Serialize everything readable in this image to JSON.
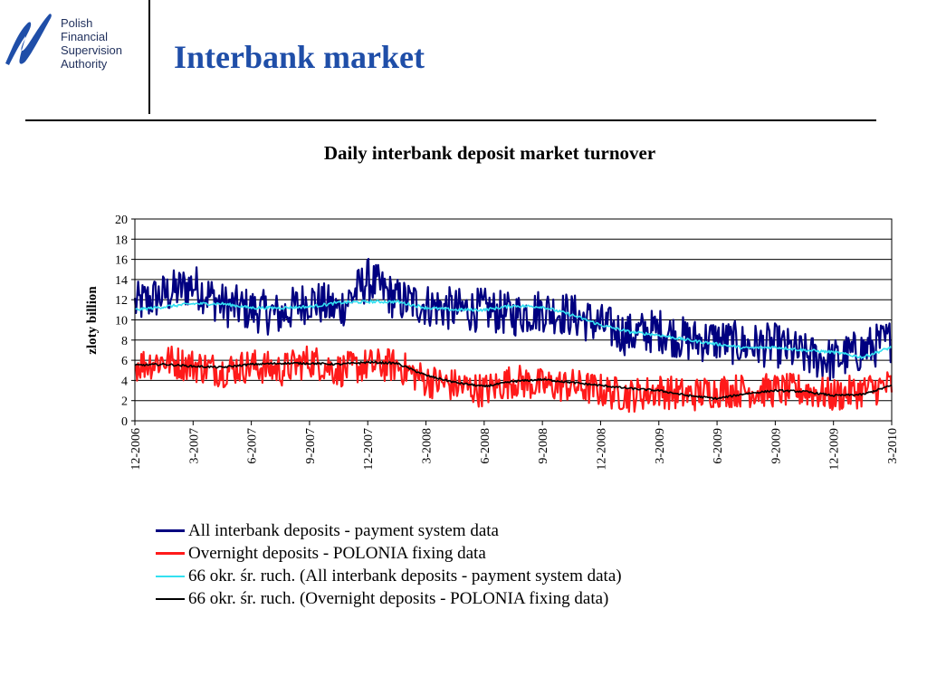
{
  "header": {
    "logo_lines": [
      "Polish",
      "Financial",
      "Supervision",
      "Authority"
    ],
    "title": "Interbank market"
  },
  "colors": {
    "all_deposits": "#000080",
    "overnight": "#ff1a1a",
    "ma_all": "#33e0f0",
    "ma_overnight": "#000000",
    "logo": "#1f4ea8"
  },
  "chart_data": {
    "type": "line",
    "title": "Daily interbank deposit market turnover",
    "ylabel": "zloty billion",
    "xlabel": "",
    "ylim": [
      0,
      20
    ],
    "yticks": [
      0,
      2,
      4,
      6,
      8,
      10,
      12,
      14,
      16,
      18,
      20
    ],
    "xlim": [
      "2006-12",
      "2010-03"
    ],
    "xticks": [
      "12-2006",
      "3-2007",
      "6-2007",
      "9-2007",
      "12-2007",
      "3-2008",
      "6-2008",
      "9-2008",
      "12-2008",
      "3-2009",
      "6-2009",
      "9-2009",
      "12-2009",
      "3-2010"
    ],
    "grid": "horizontal",
    "legend_position": "bottom",
    "x_quarter_index": [
      0,
      0.5,
      1,
      1.5,
      2,
      2.5,
      3,
      3.5,
      4,
      4.5,
      5,
      5.5,
      6,
      6.5,
      7,
      7.5,
      8,
      8.5,
      9,
      9.5,
      10,
      10.5,
      11,
      11.5,
      12,
      12.5,
      13
    ],
    "series": [
      {
        "name": "All interbank deposits - payment system data",
        "color_key": "all_deposits",
        "values": [
          11.5,
          12.5,
          13.5,
          11.5,
          11.0,
          10.5,
          12.0,
          11.0,
          14.0,
          12.0,
          11.5,
          11.0,
          11.0,
          10.5,
          11.0,
          10.5,
          9.5,
          8.5,
          9.0,
          8.0,
          8.0,
          7.5,
          7.5,
          6.5,
          6.0,
          7.0,
          8.0
        ]
      },
      {
        "name": "Overnight deposits - POLONIA fixing data",
        "color_key": "overnight",
        "values": [
          5.5,
          6.0,
          5.5,
          5.0,
          5.5,
          5.0,
          6.0,
          5.0,
          5.5,
          5.5,
          4.0,
          3.5,
          3.0,
          4.0,
          3.5,
          3.5,
          3.0,
          2.5,
          3.0,
          2.5,
          3.0,
          3.0,
          3.0,
          3.0,
          2.5,
          3.0,
          3.5
        ]
      },
      {
        "name": "66 okr. śr. ruch. (All interbank deposits - payment system data)",
        "color_key": "ma_all",
        "values": [
          11.0,
          11.3,
          11.6,
          11.6,
          11.2,
          11.2,
          11.3,
          11.7,
          11.8,
          11.8,
          11.2,
          11.0,
          11.0,
          11.4,
          11.3,
          10.5,
          9.5,
          8.8,
          8.5,
          8.0,
          7.6,
          7.2,
          7.3,
          7.0,
          6.8,
          6.3,
          7.3
        ]
      },
      {
        "name": "66 okr. śr. ruch. (Overnight deposits - POLONIA fixing data)",
        "color_key": "ma_overnight",
        "values": [
          5.5,
          5.6,
          5.4,
          5.3,
          5.6,
          5.7,
          5.7,
          5.6,
          5.8,
          5.7,
          4.5,
          3.8,
          3.4,
          3.9,
          4.1,
          3.8,
          3.5,
          3.2,
          3.0,
          2.5,
          2.2,
          2.7,
          3.0,
          2.9,
          2.5,
          2.6,
          3.5
        ]
      }
    ]
  }
}
